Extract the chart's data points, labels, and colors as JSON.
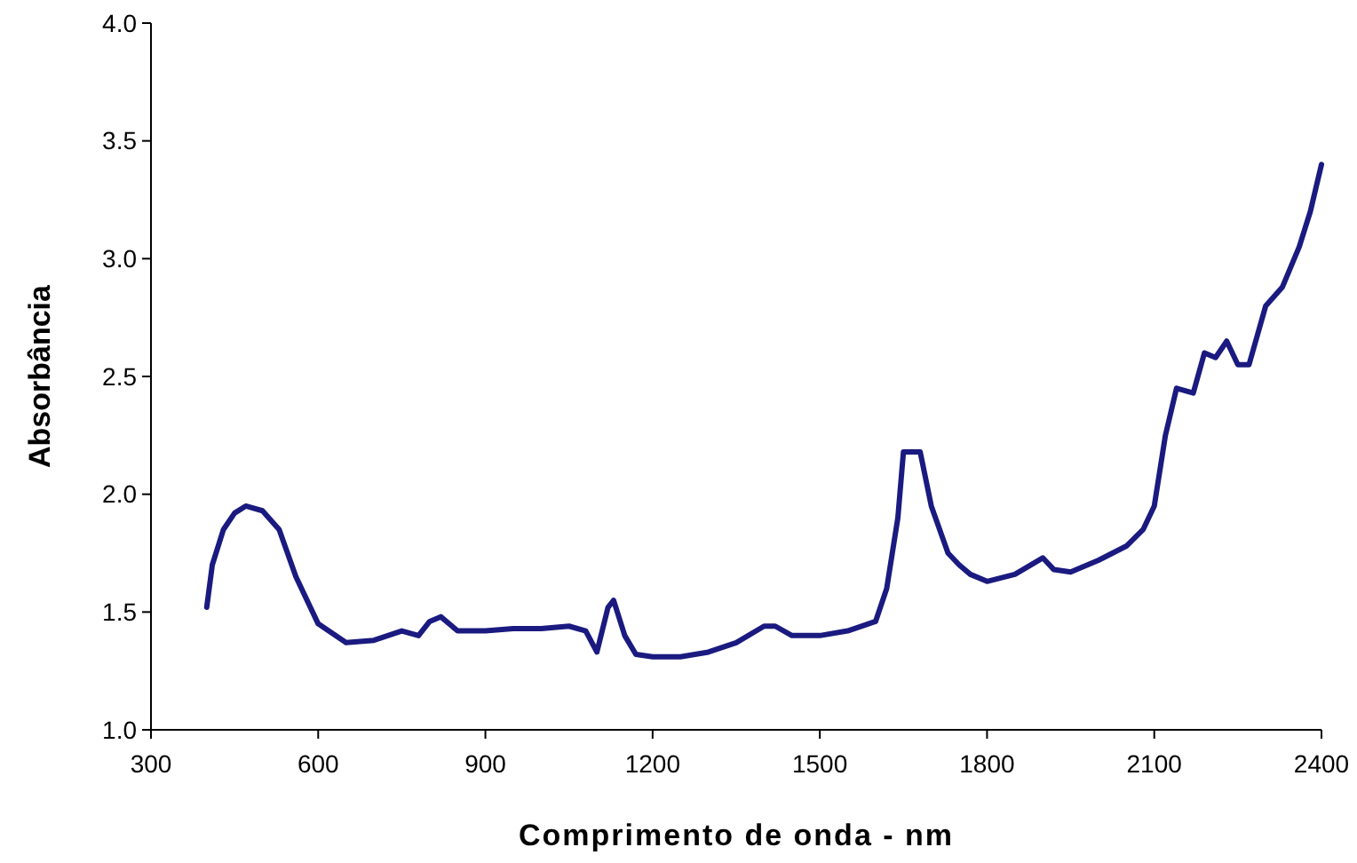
{
  "chart_data": {
    "type": "line",
    "xlabel": "Comprimento de onda - nm",
    "ylabel": "Absorbância",
    "xlim": [
      300,
      2400
    ],
    "xticks": [
      300,
      600,
      900,
      1200,
      1500,
      1800,
      2100,
      2400
    ],
    "ylim": [
      1,
      4
    ],
    "yticks": [
      {
        "value": 1,
        "label": "1.0"
      },
      {
        "value": 1.5,
        "label": "1.5"
      },
      {
        "value": 2,
        "label": "2.0"
      },
      {
        "value": 2.5,
        "label": "2.5"
      },
      {
        "value": 3,
        "label": "3.0"
      },
      {
        "value": 3.5,
        "label": "3.5"
      },
      {
        "value": 4,
        "label": "4.0"
      }
    ],
    "grid": false,
    "series": [
      {
        "color": "#1a1a80",
        "x": [
          400,
          410,
          430,
          450,
          470,
          500,
          530,
          560,
          600,
          650,
          700,
          750,
          780,
          800,
          820,
          850,
          900,
          950,
          1000,
          1050,
          1080,
          1100,
          1120,
          1130,
          1150,
          1170,
          1200,
          1250,
          1300,
          1350,
          1400,
          1420,
          1450,
          1500,
          1550,
          1600,
          1620,
          1640,
          1650,
          1680,
          1700,
          1730,
          1750,
          1770,
          1800,
          1850,
          1900,
          1920,
          1950,
          2000,
          2050,
          2080,
          2100,
          2120,
          2140,
          2170,
          2190,
          2210,
          2230,
          2250,
          2270,
          2300,
          2330,
          2360,
          2380,
          2390,
          2400
        ],
        "values": [
          1.52,
          1.7,
          1.85,
          1.92,
          1.95,
          1.93,
          1.85,
          1.65,
          1.45,
          1.37,
          1.38,
          1.42,
          1.4,
          1.46,
          1.48,
          1.42,
          1.42,
          1.43,
          1.43,
          1.44,
          1.42,
          1.33,
          1.52,
          1.55,
          1.4,
          1.32,
          1.31,
          1.31,
          1.33,
          1.37,
          1.44,
          1.44,
          1.4,
          1.4,
          1.42,
          1.46,
          1.6,
          1.9,
          2.18,
          2.18,
          1.95,
          1.75,
          1.7,
          1.66,
          1.63,
          1.66,
          1.73,
          1.68,
          1.67,
          1.72,
          1.78,
          1.85,
          1.95,
          2.25,
          2.45,
          2.43,
          2.6,
          2.58,
          2.65,
          2.55,
          2.55,
          2.8,
          2.88,
          3.05,
          3.2,
          3.3,
          3.4
        ]
      }
    ]
  }
}
